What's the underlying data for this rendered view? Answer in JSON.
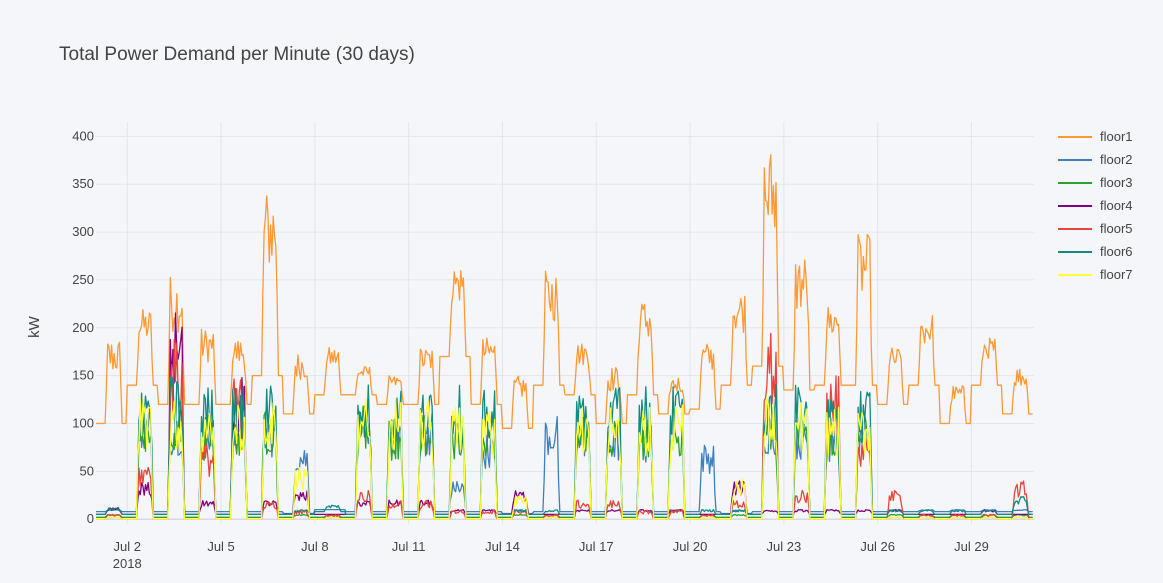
{
  "chart_data": {
    "type": "line",
    "title": "Total Power Demand per Minute (30 days)",
    "xlabel": "",
    "ylabel": "kW",
    "x_start": "2018-07-01",
    "x_end": "2018-07-31",
    "xlim": [
      "2018-07-01",
      "2018-07-31"
    ],
    "ylim": [
      -5,
      415
    ],
    "x_ticks": [
      "Jul 2",
      "Jul 5",
      "Jul 8",
      "Jul 11",
      "Jul 14",
      "Jul 17",
      "Jul 20",
      "Jul 23",
      "Jul 26",
      "Jul 29"
    ],
    "x_tick_year": "2018",
    "y_ticks": [
      0,
      50,
      100,
      150,
      200,
      250,
      300,
      350,
      400
    ],
    "grid": true,
    "legend_position": "right",
    "series": [
      {
        "name": "floor1",
        "color": "#ff9933",
        "dates": [
          "2018-07-01",
          "2018-07-02",
          "2018-07-03",
          "2018-07-04",
          "2018-07-05",
          "2018-07-06",
          "2018-07-07",
          "2018-07-08",
          "2018-07-09",
          "2018-07-10",
          "2018-07-11",
          "2018-07-12",
          "2018-07-13",
          "2018-07-14",
          "2018-07-15",
          "2018-07-16",
          "2018-07-17",
          "2018-07-18",
          "2018-07-19",
          "2018-07-20",
          "2018-07-21",
          "2018-07-22",
          "2018-07-23",
          "2018-07-24",
          "2018-07-25",
          "2018-07-26",
          "2018-07-27",
          "2018-07-28",
          "2018-07-29",
          "2018-07-30"
        ],
        "peak": [
          190,
          220,
          256,
          200,
          190,
          345,
          175,
          180,
          160,
          150,
          180,
          268,
          190,
          150,
          260,
          185,
          160,
          230,
          150,
          185,
          240,
          390,
          278,
          225,
          298,
          180,
          215,
          140,
          190,
          160
        ],
        "base": [
          100,
          140,
          120,
          120,
          120,
          150,
          110,
          130,
          130,
          120,
          120,
          170,
          120,
          95,
          140,
          130,
          100,
          130,
          110,
          115,
          140,
          160,
          135,
          140,
          140,
          120,
          140,
          100,
          140,
          110
        ]
      },
      {
        "name": "floor2",
        "color": "#3f7fbf",
        "dates": [
          "2018-07-01",
          "2018-07-02",
          "2018-07-03",
          "2018-07-04",
          "2018-07-05",
          "2018-07-06",
          "2018-07-07",
          "2018-07-08",
          "2018-07-09",
          "2018-07-10",
          "2018-07-11",
          "2018-07-12",
          "2018-07-13",
          "2018-07-14",
          "2018-07-15",
          "2018-07-16",
          "2018-07-17",
          "2018-07-18",
          "2018-07-19",
          "2018-07-20",
          "2018-07-21",
          "2018-07-22",
          "2018-07-23",
          "2018-07-24",
          "2018-07-25",
          "2018-07-26",
          "2018-07-27",
          "2018-07-28",
          "2018-07-29",
          "2018-07-30"
        ],
        "peak": [
          10,
          120,
          115,
          110,
          110,
          110,
          80,
          10,
          120,
          115,
          115,
          40,
          90,
          10,
          110,
          110,
          100,
          100,
          10,
          80,
          10,
          115,
          105,
          100,
          100,
          10,
          10,
          10,
          10,
          10
        ],
        "base": [
          8,
          8,
          8,
          8,
          8,
          8,
          6,
          10,
          8,
          8,
          8,
          8,
          8,
          6,
          8,
          8,
          8,
          8,
          8,
          8,
          6,
          8,
          8,
          8,
          8,
          8,
          8,
          8,
          8,
          8
        ]
      },
      {
        "name": "floor3",
        "color": "#2ca02c",
        "dates": [
          "2018-07-01",
          "2018-07-02",
          "2018-07-03",
          "2018-07-04",
          "2018-07-05",
          "2018-07-06",
          "2018-07-07",
          "2018-07-08",
          "2018-07-09",
          "2018-07-10",
          "2018-07-11",
          "2018-07-12",
          "2018-07-13",
          "2018-07-14",
          "2018-07-15",
          "2018-07-16",
          "2018-07-17",
          "2018-07-18",
          "2018-07-19",
          "2018-07-20",
          "2018-07-21",
          "2018-07-22",
          "2018-07-23",
          "2018-07-24",
          "2018-07-25",
          "2018-07-26",
          "2018-07-27",
          "2018-07-28",
          "2018-07-29",
          "2018-07-30"
        ],
        "peak": [
          5,
          120,
          115,
          110,
          110,
          115,
          5,
          5,
          120,
          110,
          110,
          110,
          110,
          5,
          5,
          110,
          110,
          110,
          110,
          5,
          5,
          120,
          115,
          110,
          110,
          5,
          5,
          5,
          5,
          5
        ],
        "base": [
          2,
          2,
          2,
          2,
          2,
          2,
          2,
          2,
          2,
          2,
          2,
          2,
          2,
          2,
          2,
          2,
          2,
          2,
          2,
          2,
          2,
          2,
          2,
          2,
          2,
          2,
          2,
          2,
          2,
          2
        ]
      },
      {
        "name": "floor4",
        "color": "#800080",
        "dates": [
          "2018-07-01",
          "2018-07-02",
          "2018-07-03",
          "2018-07-04",
          "2018-07-05",
          "2018-07-06",
          "2018-07-07",
          "2018-07-08",
          "2018-07-09",
          "2018-07-10",
          "2018-07-11",
          "2018-07-12",
          "2018-07-13",
          "2018-07-14",
          "2018-07-15",
          "2018-07-16",
          "2018-07-17",
          "2018-07-18",
          "2018-07-19",
          "2018-07-20",
          "2018-07-21",
          "2018-07-22",
          "2018-07-23",
          "2018-07-24",
          "2018-07-25",
          "2018-07-26",
          "2018-07-27",
          "2018-07-28",
          "2018-07-29",
          "2018-07-30"
        ],
        "peak": [
          12,
          40,
          222,
          20,
          150,
          20,
          30,
          5,
          20,
          20,
          20,
          10,
          10,
          30,
          5,
          10,
          10,
          10,
          10,
          5,
          40,
          10,
          10,
          10,
          10,
          10,
          5,
          5,
          10,
          5
        ],
        "base": [
          5,
          5,
          5,
          5,
          5,
          5,
          5,
          5,
          5,
          5,
          5,
          5,
          5,
          5,
          5,
          5,
          5,
          5,
          5,
          5,
          5,
          5,
          5,
          5,
          5,
          5,
          5,
          5,
          5,
          5
        ]
      },
      {
        "name": "floor5",
        "color": "#e8453c",
        "dates": [
          "2018-07-01",
          "2018-07-02",
          "2018-07-03",
          "2018-07-04",
          "2018-07-05",
          "2018-07-06",
          "2018-07-07",
          "2018-07-08",
          "2018-07-09",
          "2018-07-10",
          "2018-07-11",
          "2018-07-12",
          "2018-07-13",
          "2018-07-14",
          "2018-07-15",
          "2018-07-16",
          "2018-07-17",
          "2018-07-18",
          "2018-07-19",
          "2018-07-20",
          "2018-07-21",
          "2018-07-22",
          "2018-07-23",
          "2018-07-24",
          "2018-07-25",
          "2018-07-26",
          "2018-07-27",
          "2018-07-28",
          "2018-07-29",
          "2018-07-30"
        ],
        "peak": [
          5,
          60,
          190,
          80,
          150,
          20,
          10,
          5,
          30,
          20,
          20,
          10,
          10,
          10,
          5,
          20,
          20,
          10,
          10,
          5,
          20,
          200,
          30,
          150,
          100,
          30,
          5,
          5,
          5,
          40
        ],
        "base": [
          0,
          0,
          0,
          0,
          0,
          0,
          0,
          0,
          0,
          0,
          0,
          0,
          0,
          0,
          0,
          0,
          0,
          0,
          0,
          0,
          0,
          0,
          0,
          0,
          0,
          0,
          0,
          0,
          0,
          0
        ]
      },
      {
        "name": "floor6",
        "color": "#118a80",
        "dates": [
          "2018-07-01",
          "2018-07-02",
          "2018-07-03",
          "2018-07-04",
          "2018-07-05",
          "2018-07-06",
          "2018-07-07",
          "2018-07-08",
          "2018-07-09",
          "2018-07-10",
          "2018-07-11",
          "2018-07-12",
          "2018-07-13",
          "2018-07-14",
          "2018-07-15",
          "2018-07-16",
          "2018-07-17",
          "2018-07-18",
          "2018-07-19",
          "2018-07-20",
          "2018-07-21",
          "2018-07-22",
          "2018-07-23",
          "2018-07-24",
          "2018-07-25",
          "2018-07-26",
          "2018-07-27",
          "2018-07-28",
          "2018-07-29",
          "2018-07-30"
        ],
        "peak": [
          12,
          155,
          150,
          140,
          140,
          145,
          10,
          15,
          150,
          140,
          135,
          140,
          135,
          10,
          10,
          140,
          140,
          140,
          140,
          10,
          10,
          150,
          140,
          140,
          140,
          10,
          10,
          10,
          10,
          25
        ],
        "base": [
          5,
          5,
          5,
          5,
          5,
          5,
          5,
          8,
          5,
          5,
          5,
          5,
          5,
          5,
          5,
          5,
          5,
          5,
          5,
          5,
          5,
          5,
          5,
          5,
          5,
          5,
          5,
          5,
          5,
          5
        ]
      },
      {
        "name": "floor7",
        "color": "#ffff33",
        "dates": [
          "2018-07-01",
          "2018-07-02",
          "2018-07-03",
          "2018-07-04",
          "2018-07-05",
          "2018-07-06",
          "2018-07-07",
          "2018-07-08",
          "2018-07-09",
          "2018-07-10",
          "2018-07-11",
          "2018-07-12",
          "2018-07-13",
          "2018-07-14",
          "2018-07-15",
          "2018-07-16",
          "2018-07-17",
          "2018-07-18",
          "2018-07-19",
          "2018-07-20",
          "2018-07-21",
          "2018-07-22",
          "2018-07-23",
          "2018-07-24",
          "2018-07-25",
          "2018-07-26",
          "2018-07-27",
          "2018-07-28",
          "2018-07-29",
          "2018-07-30"
        ],
        "peak": [
          2,
          130,
          125,
          120,
          120,
          125,
          55,
          2,
          130,
          125,
          125,
          120,
          120,
          25,
          2,
          120,
          120,
          120,
          120,
          2,
          42,
          130,
          125,
          120,
          120,
          2,
          2,
          2,
          2,
          2
        ],
        "base": [
          0,
          0,
          0,
          0,
          0,
          0,
          0,
          0,
          0,
          0,
          0,
          0,
          0,
          0,
          0,
          0,
          0,
          0,
          0,
          0,
          0,
          0,
          0,
          0,
          0,
          0,
          0,
          0,
          0,
          0
        ]
      }
    ]
  }
}
